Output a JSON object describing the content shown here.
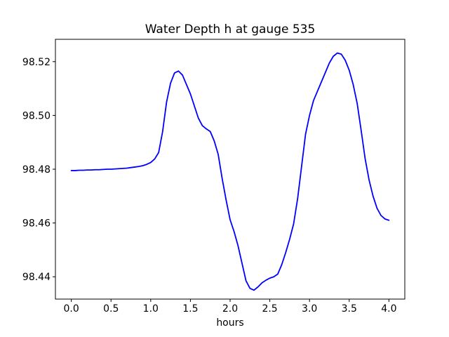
{
  "chart_data": {
    "type": "line",
    "title": "Water Depth h at gauge 535",
    "xlabel": "hours",
    "ylabel": "",
    "grid": false,
    "legend": null,
    "xlim": [
      -0.2,
      4.2
    ],
    "ylim": [
      98.4317,
      98.5283
    ],
    "xticks": {
      "values": [
        0.0,
        0.5,
        1.0,
        1.5,
        2.0,
        2.5,
        3.0,
        3.5,
        4.0
      ],
      "labels": [
        "0.0",
        "0.5",
        "1.0",
        "1.5",
        "2.0",
        "2.5",
        "3.0",
        "3.5",
        "4.0"
      ]
    },
    "yticks": {
      "values": [
        98.44,
        98.46,
        98.48,
        98.5,
        98.52
      ],
      "labels": [
        "98.44",
        "98.46",
        "98.48",
        "98.50",
        "98.52"
      ]
    },
    "colors": {
      "line": "#0000ff",
      "axis": "#000000",
      "background": "#ffffff"
    },
    "series": [
      {
        "name": "water-depth-h",
        "color": "#0000ff",
        "x": [
          0.0,
          0.05,
          0.1,
          0.15,
          0.2,
          0.25,
          0.3,
          0.35,
          0.4,
          0.45,
          0.5,
          0.55,
          0.6,
          0.65,
          0.7,
          0.75,
          0.8,
          0.85,
          0.9,
          0.95,
          1.0,
          1.05,
          1.1,
          1.15,
          1.2,
          1.25,
          1.3,
          1.35,
          1.4,
          1.45,
          1.5,
          1.55,
          1.6,
          1.65,
          1.7,
          1.75,
          1.8,
          1.85,
          1.9,
          1.95,
          2.0,
          2.05,
          2.1,
          2.15,
          2.2,
          2.25,
          2.3,
          2.35,
          2.4,
          2.45,
          2.5,
          2.55,
          2.6,
          2.65,
          2.7,
          2.75,
          2.8,
          2.85,
          2.9,
          2.95,
          3.0,
          3.05,
          3.1,
          3.15,
          3.2,
          3.25,
          3.3,
          3.35,
          3.4,
          3.45,
          3.5,
          3.55,
          3.6,
          3.65,
          3.7,
          3.75,
          3.8,
          3.85,
          3.9,
          3.95,
          4.0
        ],
        "y": [
          98.4795,
          98.4795,
          98.4796,
          98.4796,
          98.4797,
          98.4797,
          98.4798,
          98.4798,
          98.4799,
          98.48,
          98.48,
          98.4801,
          98.4802,
          98.4803,
          98.4804,
          98.4806,
          98.4808,
          98.481,
          98.4813,
          98.4818,
          98.4825,
          98.4838,
          98.4862,
          98.494,
          98.505,
          98.512,
          98.5158,
          98.5165,
          98.515,
          98.5115,
          98.508,
          98.5035,
          98.499,
          98.4962,
          98.495,
          98.494,
          98.4905,
          98.4855,
          98.4765,
          98.4685,
          98.4612,
          98.4568,
          98.4515,
          98.445,
          98.4385,
          98.4357,
          98.435,
          98.4362,
          98.4377,
          98.4387,
          98.4395,
          98.44,
          98.441,
          98.4445,
          98.449,
          98.454,
          98.4597,
          98.469,
          98.481,
          98.493,
          98.5,
          98.5055,
          98.509,
          98.5125,
          98.516,
          98.5195,
          98.522,
          98.5232,
          98.5228,
          98.5205,
          98.5168,
          98.5115,
          98.5045,
          98.4945,
          98.484,
          98.476,
          98.47,
          98.4655,
          98.4628,
          98.4615,
          98.461
        ]
      }
    ]
  }
}
